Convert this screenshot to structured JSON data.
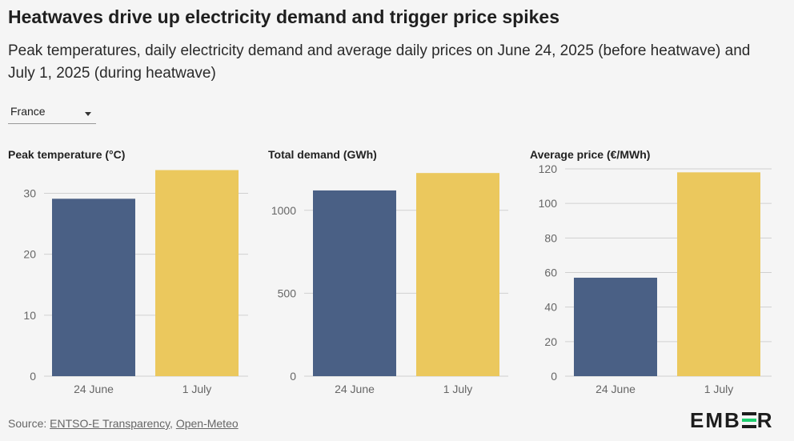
{
  "title": "Heatwaves drive up electricity demand and trigger price spikes",
  "subtitle": "Peak temperatures, daily electricity demand and average daily prices on June 24, 2025 (before heatwave) and July 1, 2025 (during heatwave)",
  "selector": {
    "value": "France"
  },
  "colors": {
    "before": "#4a6085",
    "during": "#ebc85d",
    "grid": "#d0d0d0",
    "tick": "#666666"
  },
  "chart_data": [
    {
      "type": "bar",
      "title": "Peak temperature (°C)",
      "categories": [
        "24 June",
        "1 July"
      ],
      "values": [
        29.1,
        33.8
      ],
      "yticks": [
        0,
        10,
        20,
        30
      ],
      "ylim": [
        0,
        34
      ]
    },
    {
      "type": "bar",
      "title": "Total demand (GWh)",
      "categories": [
        "24 June",
        "1 July"
      ],
      "values": [
        1120,
        1225
      ],
      "yticks": [
        0,
        500,
        1000
      ],
      "ylim": [
        0,
        1250
      ]
    },
    {
      "type": "bar",
      "title": "Average price (€/MWh)",
      "categories": [
        "24 June",
        "1 July"
      ],
      "values": [
        57,
        118
      ],
      "yticks": [
        0,
        20,
        40,
        60,
        80,
        100,
        120
      ],
      "ylim": [
        0,
        120
      ]
    }
  ],
  "footer": {
    "prefix": "Source: ",
    "link1": "ENTSO-E Transparency",
    "sep": ", ",
    "link2": "Open-Meteo"
  },
  "logo": {
    "left": "EMB",
    "right": "R"
  }
}
